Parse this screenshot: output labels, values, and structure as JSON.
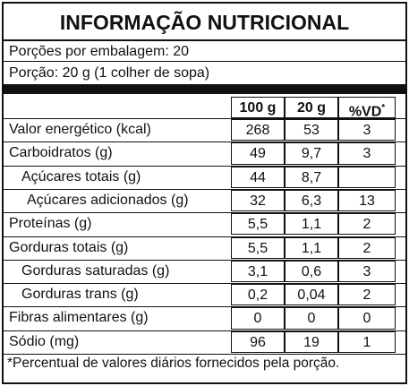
{
  "header": {
    "title": "INFORMAÇÃO NUTRICIONAL",
    "servings": "Porções por embalagem: 20",
    "portion": "Porção: 20 g (1 colher de sopa)"
  },
  "table": {
    "columns": [
      "100 g",
      "20 g",
      "%VD",
      "*"
    ],
    "rows": [
      {
        "label": "Valor energético (kcal)",
        "per_100g": "268",
        "per_20g": "53",
        "vd": "3"
      },
      {
        "label": "Carboidratos (g)",
        "per_100g": "49",
        "per_20g": "9,7",
        "vd": "3"
      },
      {
        "label": "Açúcares totais (g)",
        "per_100g": "44",
        "per_20g": "8,7"
      },
      {
        "label": "Açúcares adicionados (g)",
        "per_100g": "32",
        "per_20g": "6,3",
        "vd": "13"
      },
      {
        "label": "Proteínas (g)",
        "per_100g": "5,5",
        "per_20g": "1,1",
        "vd": "2"
      },
      {
        "label": "Gorduras totais (g)",
        "per_100g": "5,5",
        "per_20g": "1,1",
        "vd": "2"
      },
      {
        "label": "Gorduras saturadas (g)",
        "per_100g": "3,1",
        "per_20g": "0,6",
        "vd": "3"
      },
      {
        "label": "Gorduras trans (g)",
        "per_100g": "0,2",
        "per_20g": "0,04",
        "vd": "2"
      },
      {
        "label": "Fibras alimentares (g)",
        "per_100g": "0",
        "per_20g": "0",
        "vd": "0"
      },
      {
        "label": "Sódio (mg)",
        "per_100g": "96",
        "per_20g": "19",
        "vd": "1"
      }
    ]
  },
  "footnote": "*Percentual de valores diários fornecidos pela porção."
}
